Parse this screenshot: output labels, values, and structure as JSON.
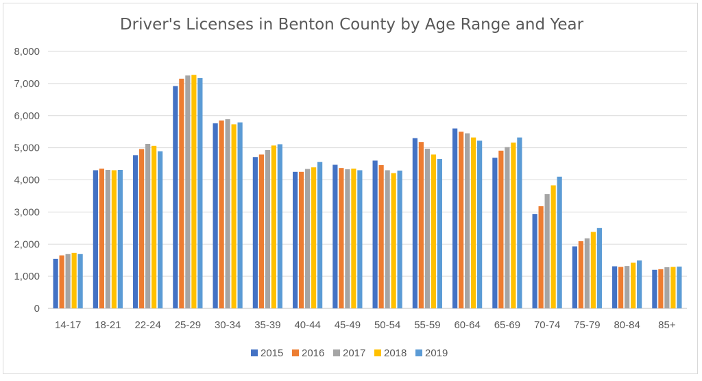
{
  "chart_data": {
    "type": "bar",
    "title": "Driver's Licenses in Benton County by Age Range and Year",
    "xlabel": "",
    "ylabel": "",
    "ylim": [
      0,
      8000
    ],
    "yticks": [
      "0",
      "1,000",
      "2,000",
      "3,000",
      "4,000",
      "5,000",
      "6,000",
      "7,000",
      "8,000"
    ],
    "grid": true,
    "legend_position": "bottom",
    "categories": [
      "14-17",
      "18-21",
      "22-24",
      "25-29",
      "30-34",
      "35-39",
      "40-44",
      "45-49",
      "50-54",
      "55-59",
      "60-64",
      "65-69",
      "70-74",
      "75-79",
      "80-84",
      "85+"
    ],
    "series": [
      {
        "name": "2015",
        "color": "#4472c4",
        "values": [
          1540,
          4300,
          4770,
          6920,
          5760,
          4710,
          4250,
          4470,
          4600,
          5300,
          5600,
          4690,
          2940,
          1930,
          1310,
          1200
        ]
      },
      {
        "name": "2016",
        "color": "#ed7d31",
        "values": [
          1650,
          4350,
          4960,
          7150,
          5850,
          4790,
          4250,
          4370,
          4460,
          5180,
          5500,
          4910,
          3180,
          2090,
          1290,
          1220
        ]
      },
      {
        "name": "2017",
        "color": "#a5a5a5",
        "values": [
          1690,
          4310,
          5120,
          7250,
          5890,
          4930,
          4340,
          4330,
          4300,
          4970,
          5450,
          5020,
          3560,
          2180,
          1320,
          1280
        ]
      },
      {
        "name": "2018",
        "color": "#ffc000",
        "values": [
          1730,
          4300,
          5060,
          7270,
          5730,
          5070,
          4390,
          4350,
          4210,
          4790,
          5320,
          5160,
          3830,
          2380,
          1420,
          1290
        ]
      },
      {
        "name": "2019",
        "color": "#5b9bd5",
        "values": [
          1690,
          4310,
          4890,
          7170,
          5790,
          5110,
          4560,
          4300,
          4290,
          4650,
          5220,
          5320,
          4100,
          2500,
          1490,
          1300
        ]
      }
    ]
  }
}
